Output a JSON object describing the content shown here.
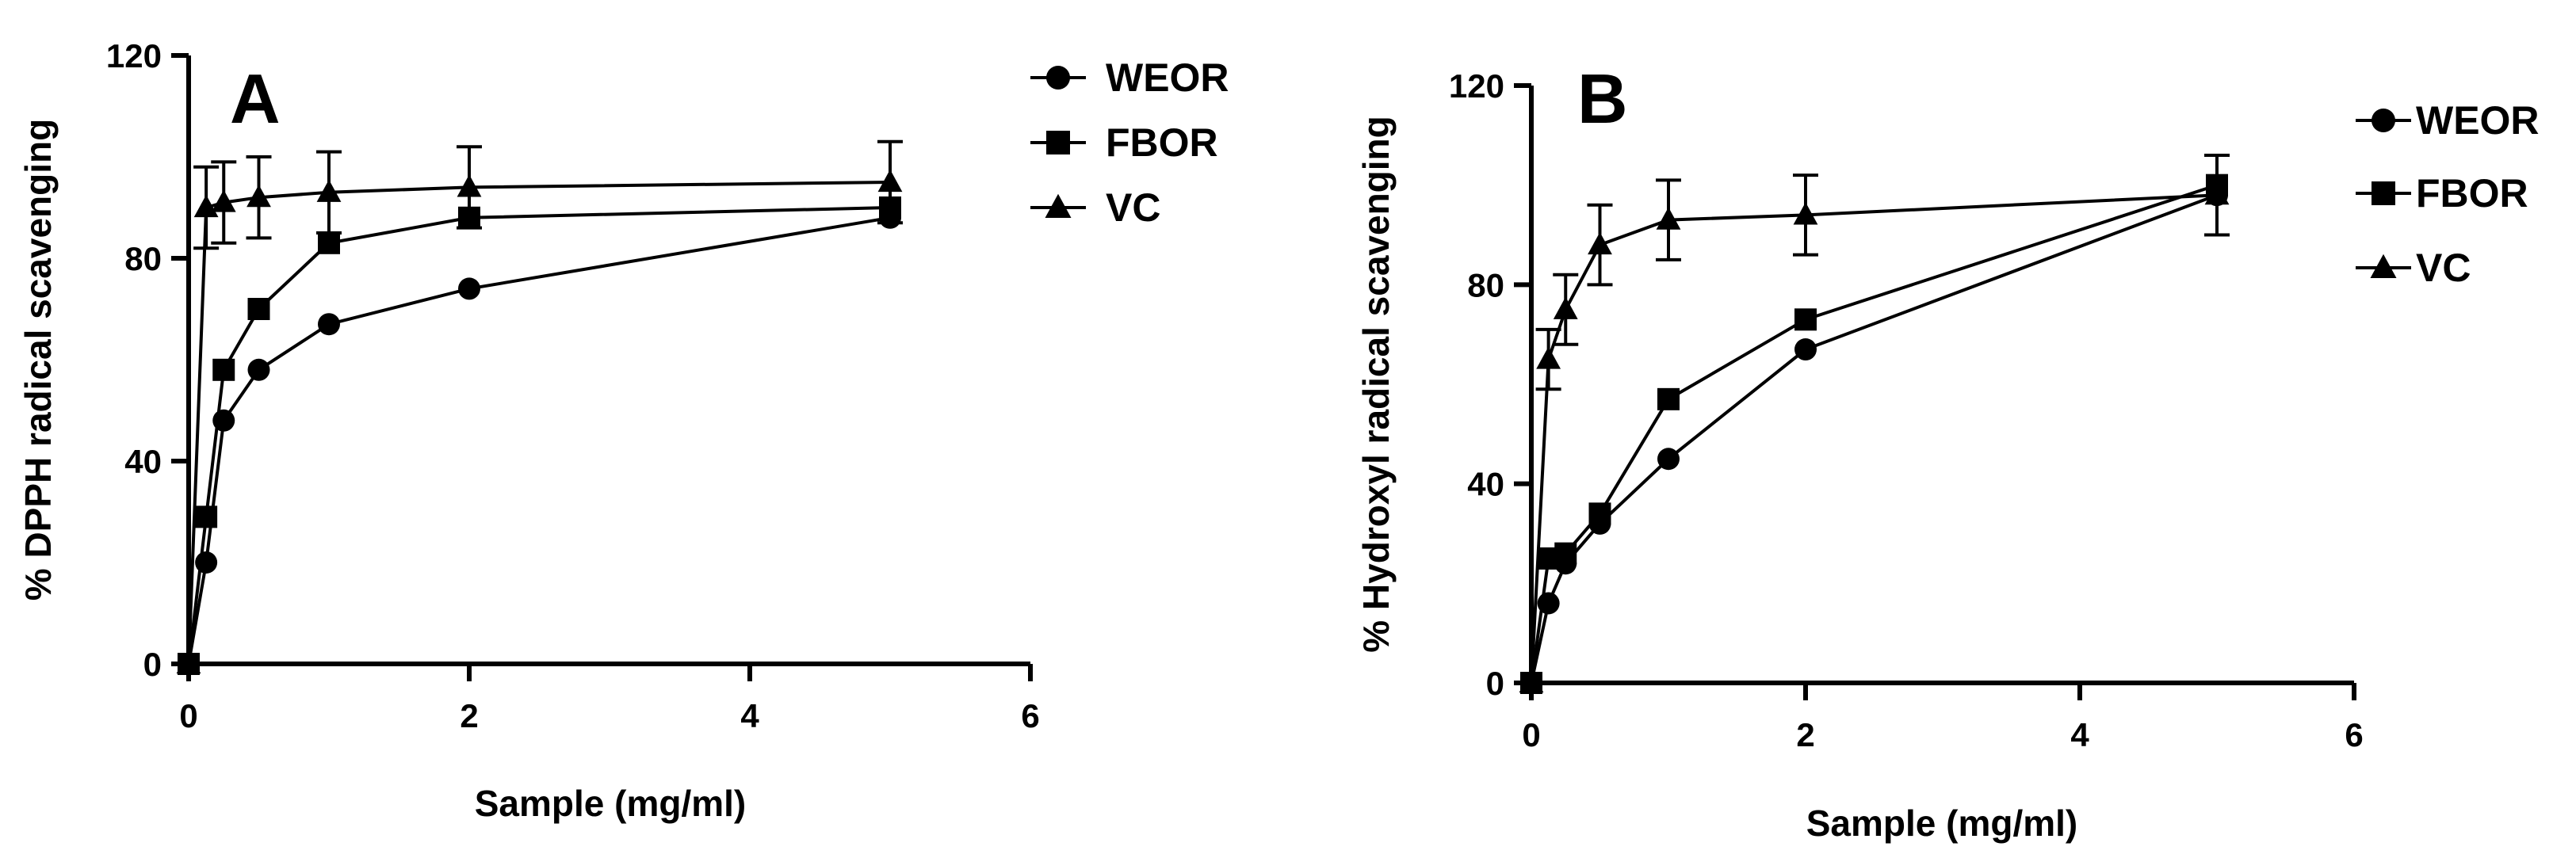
{
  "chart_data": [
    {
      "panel": "A",
      "type": "line",
      "xlabel": "Sample (mg/ml)",
      "ylabel": "% DPPH radical scavenging",
      "xlim": [
        0,
        6
      ],
      "ylim": [
        0,
        120
      ],
      "xticks": [
        "0",
        "2",
        "4",
        "6"
      ],
      "yticks": [
        "0",
        "40",
        "80",
        "120"
      ],
      "x": [
        0,
        0.125,
        0.25,
        0.5,
        1,
        2,
        5
      ],
      "series": [
        {
          "name": "WEOR",
          "marker": "circle",
          "values": [
            0,
            20,
            48,
            58,
            67,
            74,
            88
          ],
          "errors": [
            0,
            0,
            0,
            0,
            0,
            0,
            0
          ]
        },
        {
          "name": "FBOR",
          "marker": "square",
          "values": [
            0,
            29,
            58,
            70,
            83,
            88,
            90
          ],
          "errors": [
            0,
            0,
            0,
            0,
            0,
            0,
            0
          ]
        },
        {
          "name": "VC",
          "marker": "triangle",
          "values": [
            0,
            90,
            91,
            92,
            93,
            94,
            95
          ],
          "errors": [
            0,
            8,
            8,
            8,
            8,
            8,
            8
          ]
        }
      ],
      "legend_position": "right"
    },
    {
      "panel": "B",
      "type": "line",
      "xlabel": "Sample (mg/ml)",
      "ylabel": "% Hydroxyl radical scavenging",
      "xlim": [
        0,
        6
      ],
      "ylim": [
        0,
        120
      ],
      "xticks": [
        "0",
        "2",
        "4",
        "6"
      ],
      "yticks": [
        "0",
        "40",
        "80",
        "120"
      ],
      "x": [
        0,
        0.125,
        0.25,
        0.5,
        1,
        2,
        5
      ],
      "series": [
        {
          "name": "WEOR",
          "marker": "circle",
          "values": [
            0,
            16,
            24,
            32,
            45,
            67,
            98
          ],
          "errors": [
            0,
            0,
            0,
            0,
            0,
            0,
            0
          ]
        },
        {
          "name": "FBOR",
          "marker": "square",
          "values": [
            0,
            25,
            26,
            34,
            57,
            73,
            100
          ],
          "errors": [
            0,
            0,
            0,
            0,
            0,
            0,
            0
          ]
        },
        {
          "name": "VC",
          "marker": "triangle",
          "values": [
            0,
            65,
            75,
            88,
            93,
            94,
            98
          ],
          "errors": [
            0,
            6,
            7,
            8,
            8,
            8,
            8
          ]
        }
      ],
      "legend_position": "right"
    }
  ]
}
